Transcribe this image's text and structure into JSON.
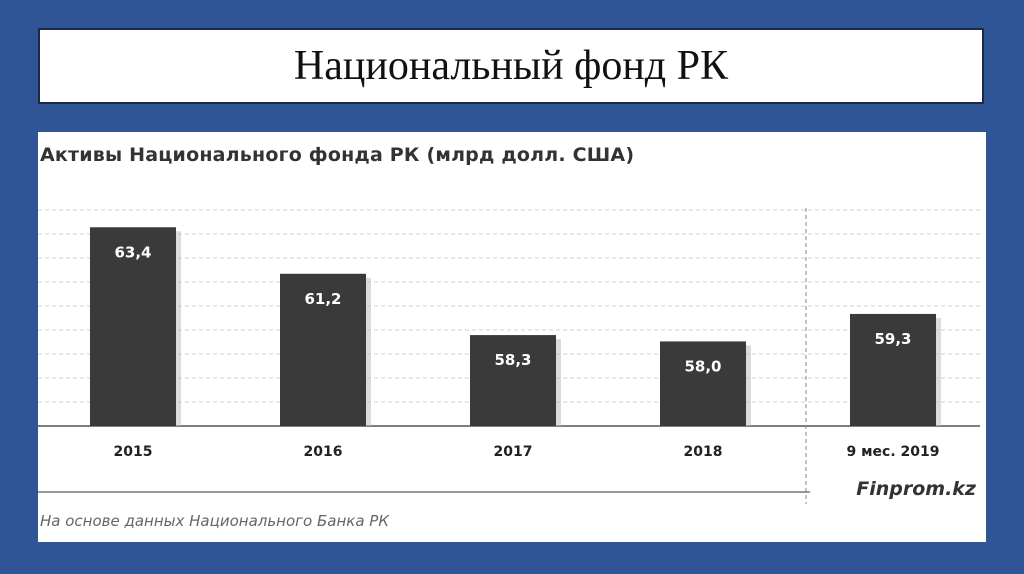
{
  "slide": {
    "title": "Национальный фонд РК"
  },
  "chart_data": {
    "type": "bar",
    "title": "Активы Национального фонда РК (млрд долл. США)",
    "categories": [
      "2015",
      "2016",
      "2017",
      "2018",
      "9 мес. 2019"
    ],
    "values": [
      63.4,
      61.2,
      58.3,
      58.0,
      59.3
    ],
    "value_labels": [
      "63,4",
      "61,2",
      "58,3",
      "58,0",
      "59,3"
    ],
    "xlabel": "",
    "ylabel": "",
    "ylim": [
      54,
      64.5
    ],
    "grid": true,
    "bar_color": "#3a3a3a",
    "label_color": "#ffffff",
    "separator_before_index": 4
  },
  "footer": {
    "brand": "Finprom.kz",
    "source": "На основе данных Национального Банка РК"
  }
}
